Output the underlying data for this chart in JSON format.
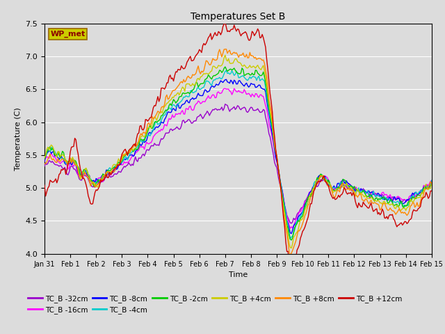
{
  "title": "Temperatures Set B",
  "xlabel": "Time",
  "ylabel": "Temperature (C)",
  "ylim": [
    4.0,
    7.5
  ],
  "bg_color": "#dcdcdc",
  "fig_bg": "#dcdcdc",
  "wp_met_label": "WP_met",
  "wp_met_color": "#cccc00",
  "wp_met_text_color": "#8B0000",
  "series_order": [
    "TC_B -32cm",
    "TC_B -16cm",
    "TC_B -8cm",
    "TC_B -4cm",
    "TC_B -2cm",
    "TC_B +4cm",
    "TC_B +8cm",
    "TC_B +12cm"
  ],
  "series_colors": {
    "TC_B -32cm": "#9900cc",
    "TC_B -16cm": "#ff00ff",
    "TC_B -8cm": "#0000ff",
    "TC_B -4cm": "#00cccc",
    "TC_B -2cm": "#00cc00",
    "TC_B +4cm": "#cccc00",
    "TC_B +8cm": "#ff8800",
    "TC_B +12cm": "#cc0000"
  },
  "xtick_labels": [
    "Jan 31",
    "Feb 1",
    "Feb 2",
    "Feb 3",
    "Feb 4",
    "Feb 5",
    "Feb 6",
    "Feb 7",
    "Feb 8",
    "Feb 9",
    "Feb 10",
    "Feb 11",
    "Feb 12",
    "Feb 13",
    "Feb 14",
    "Feb 15"
  ],
  "xtick_positions": [
    0,
    23,
    46,
    69,
    92,
    115,
    138,
    161,
    184,
    207,
    230,
    253,
    276,
    299,
    322,
    345
  ],
  "n_points": 346
}
